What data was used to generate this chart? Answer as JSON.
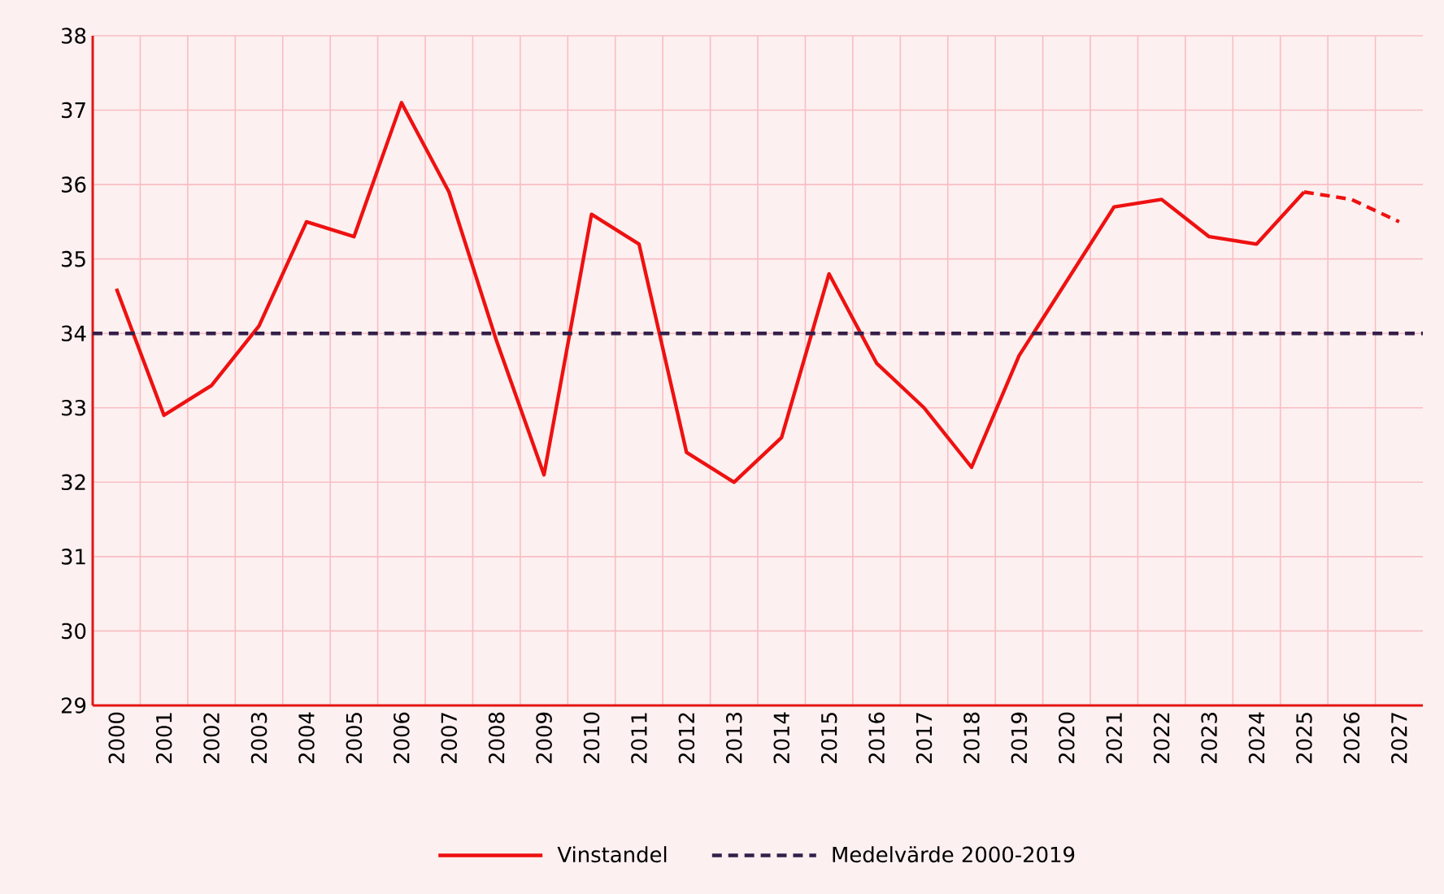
{
  "chart_data": {
    "type": "line",
    "categories": [
      "2000",
      "2001",
      "2002",
      "2003",
      "2004",
      "2005",
      "2006",
      "2007",
      "2008",
      "2009",
      "2010",
      "2011",
      "2012",
      "2013",
      "2014",
      "2015",
      "2016",
      "2017",
      "2018",
      "2019",
      "2020",
      "2021",
      "2022",
      "2023",
      "2024",
      "2025",
      "2026",
      "2027"
    ],
    "series": [
      {
        "name": "Vinstandel",
        "color": "#ee1111",
        "line_style": "solid",
        "values": [
          34.6,
          32.9,
          33.3,
          34.1,
          35.5,
          35.3,
          37.1,
          35.9,
          33.9,
          32.1,
          35.6,
          35.2,
          32.4,
          32.0,
          32.6,
          34.8,
          33.6,
          33.0,
          32.2,
          33.7,
          34.7,
          35.7,
          35.8,
          35.3,
          35.2,
          35.9,
          null,
          null
        ]
      },
      {
        "color": "#ee1111",
        "line_style": "dashed",
        "values": [
          null,
          null,
          null,
          null,
          null,
          null,
          null,
          null,
          null,
          null,
          null,
          null,
          null,
          null,
          null,
          null,
          null,
          null,
          null,
          null,
          null,
          null,
          null,
          null,
          null,
          35.9,
          35.8,
          35.5
        ]
      }
    ],
    "ref_lines": [
      {
        "axis": "y",
        "value": 34,
        "label": "Medelvärde 2000-2019",
        "color": "#33204a",
        "line_style": "dashed"
      }
    ],
    "ylim": [
      29,
      38
    ],
    "yticks": [
      29,
      30,
      31,
      32,
      33,
      34,
      35,
      36,
      37,
      38
    ],
    "grid": true,
    "legend": "bottom",
    "marker": "none"
  }
}
